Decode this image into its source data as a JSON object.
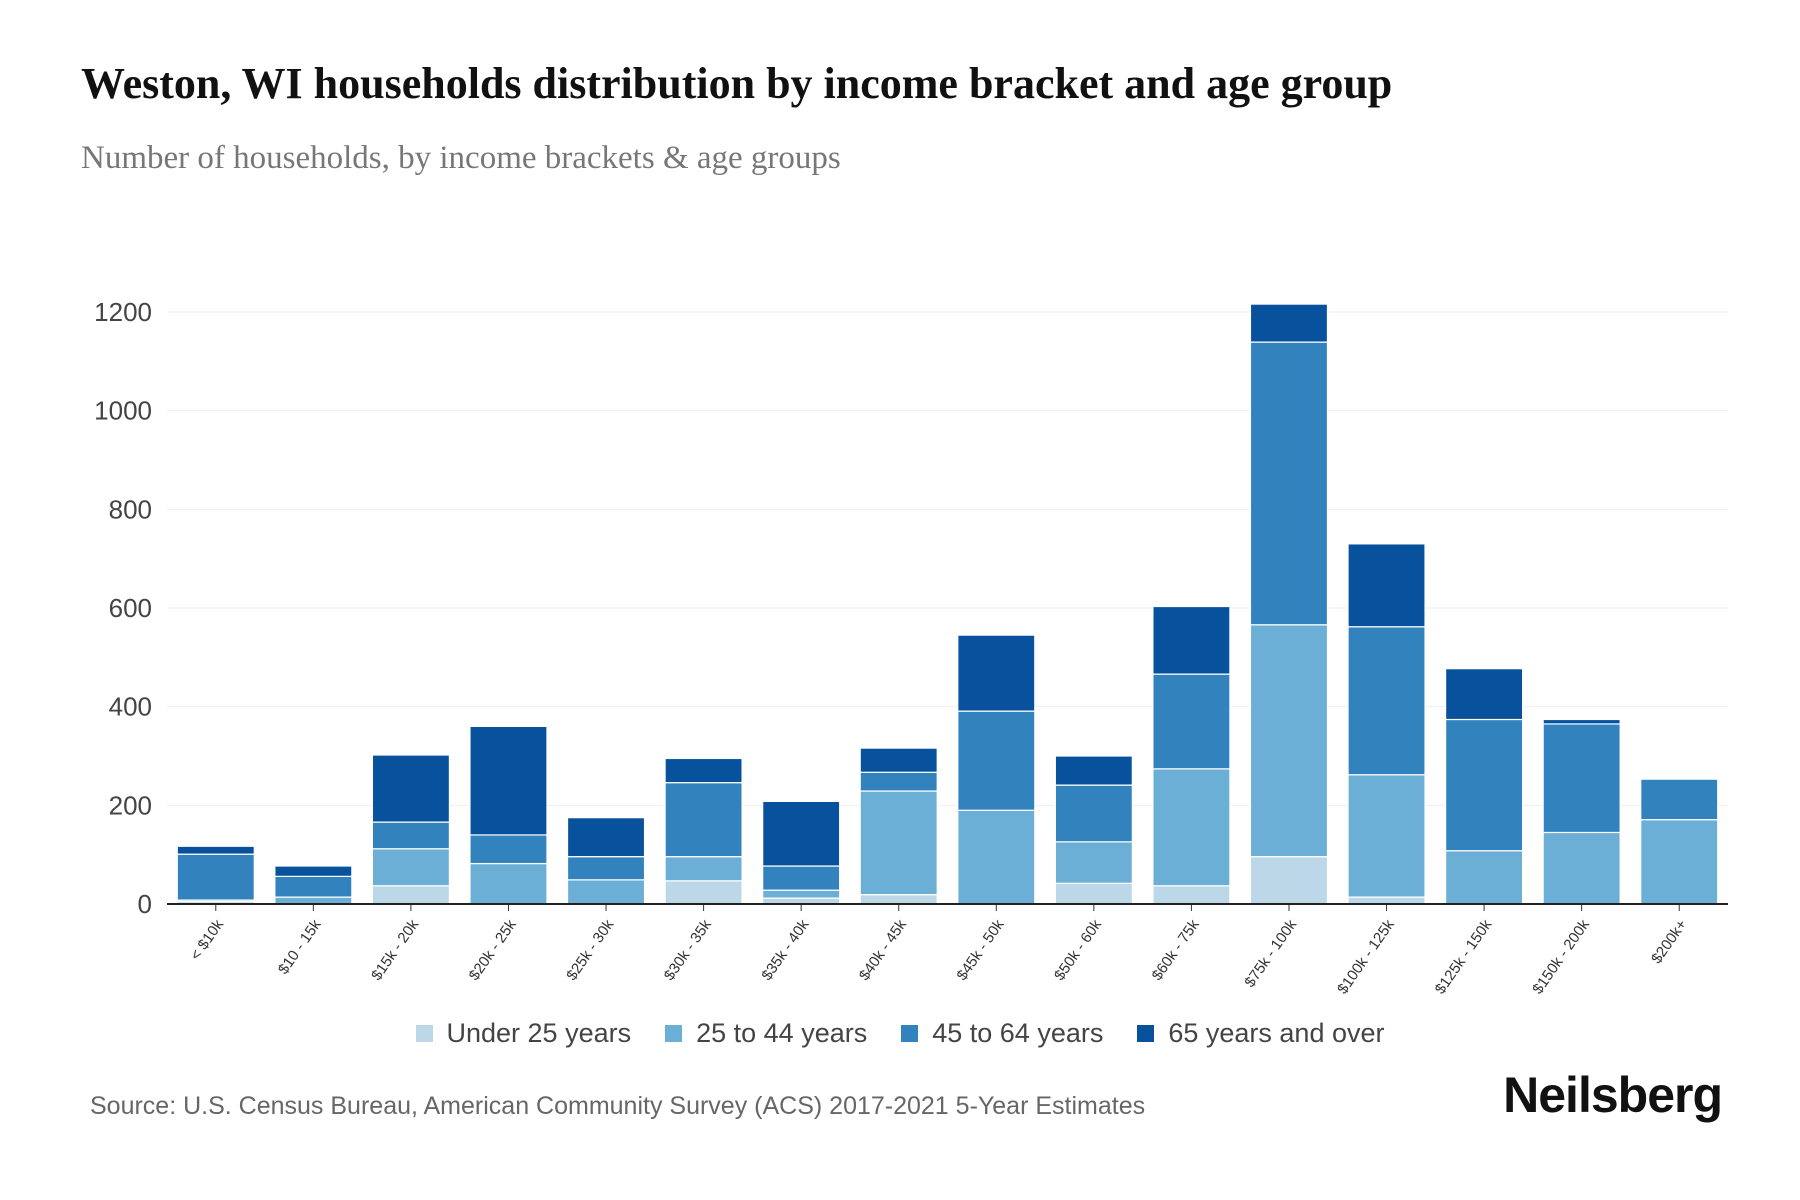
{
  "title": "Weston, WI households distribution by income bracket and age group",
  "subtitle": "Number of households, by income brackets & age groups",
  "source": "Source: U.S. Census Bureau, American Community Survey (ACS) 2017-2021 5-Year Estimates",
  "brand": "Neilsberg",
  "chart_data": {
    "type": "bar",
    "stacked": true,
    "title": "Weston, WI households distribution by income bracket and age group",
    "xlabel": "",
    "ylabel": "Number of households",
    "ylim": [
      0,
      1200
    ],
    "yticks": [
      0,
      200,
      400,
      600,
      800,
      1000,
      1200
    ],
    "grid": true,
    "legend_position": "bottom",
    "categories": [
      "< $10k",
      "$10 - 15k",
      "$15k - 20k",
      "$20k - 25k",
      "$25k - 30k",
      "$30k - 35k",
      "$35k - 40k",
      "$40k - 45k",
      "$45k - 50k",
      "$50k - 60k",
      "$60k - 75k",
      "$75k - 100k",
      "$100k - 125k",
      "$125k - 150k",
      "$150k - 200k",
      "$200k+"
    ],
    "series": [
      {
        "name": "Under 25 years",
        "color": "#bcd8e8",
        "values": [
          5,
          0,
          37,
          0,
          0,
          47,
          12,
          19,
          0,
          42,
          37,
          96,
          14,
          0,
          0,
          0
        ]
      },
      {
        "name": "25 to 44 years",
        "color": "#6baed6",
        "values": [
          3,
          14,
          75,
          82,
          49,
          49,
          16,
          210,
          190,
          84,
          237,
          470,
          248,
          108,
          145,
          171
        ]
      },
      {
        "name": "45 to 64 years",
        "color": "#3182bd",
        "values": [
          93,
          42,
          54,
          58,
          47,
          150,
          49,
          38,
          201,
          115,
          192,
          573,
          300,
          266,
          220,
          82
        ]
      },
      {
        "name": "65 years and over",
        "color": "#08519c",
        "values": [
          16,
          21,
          136,
          220,
          79,
          49,
          131,
          49,
          154,
          59,
          137,
          77,
          168,
          103,
          9,
          0
        ]
      }
    ]
  }
}
